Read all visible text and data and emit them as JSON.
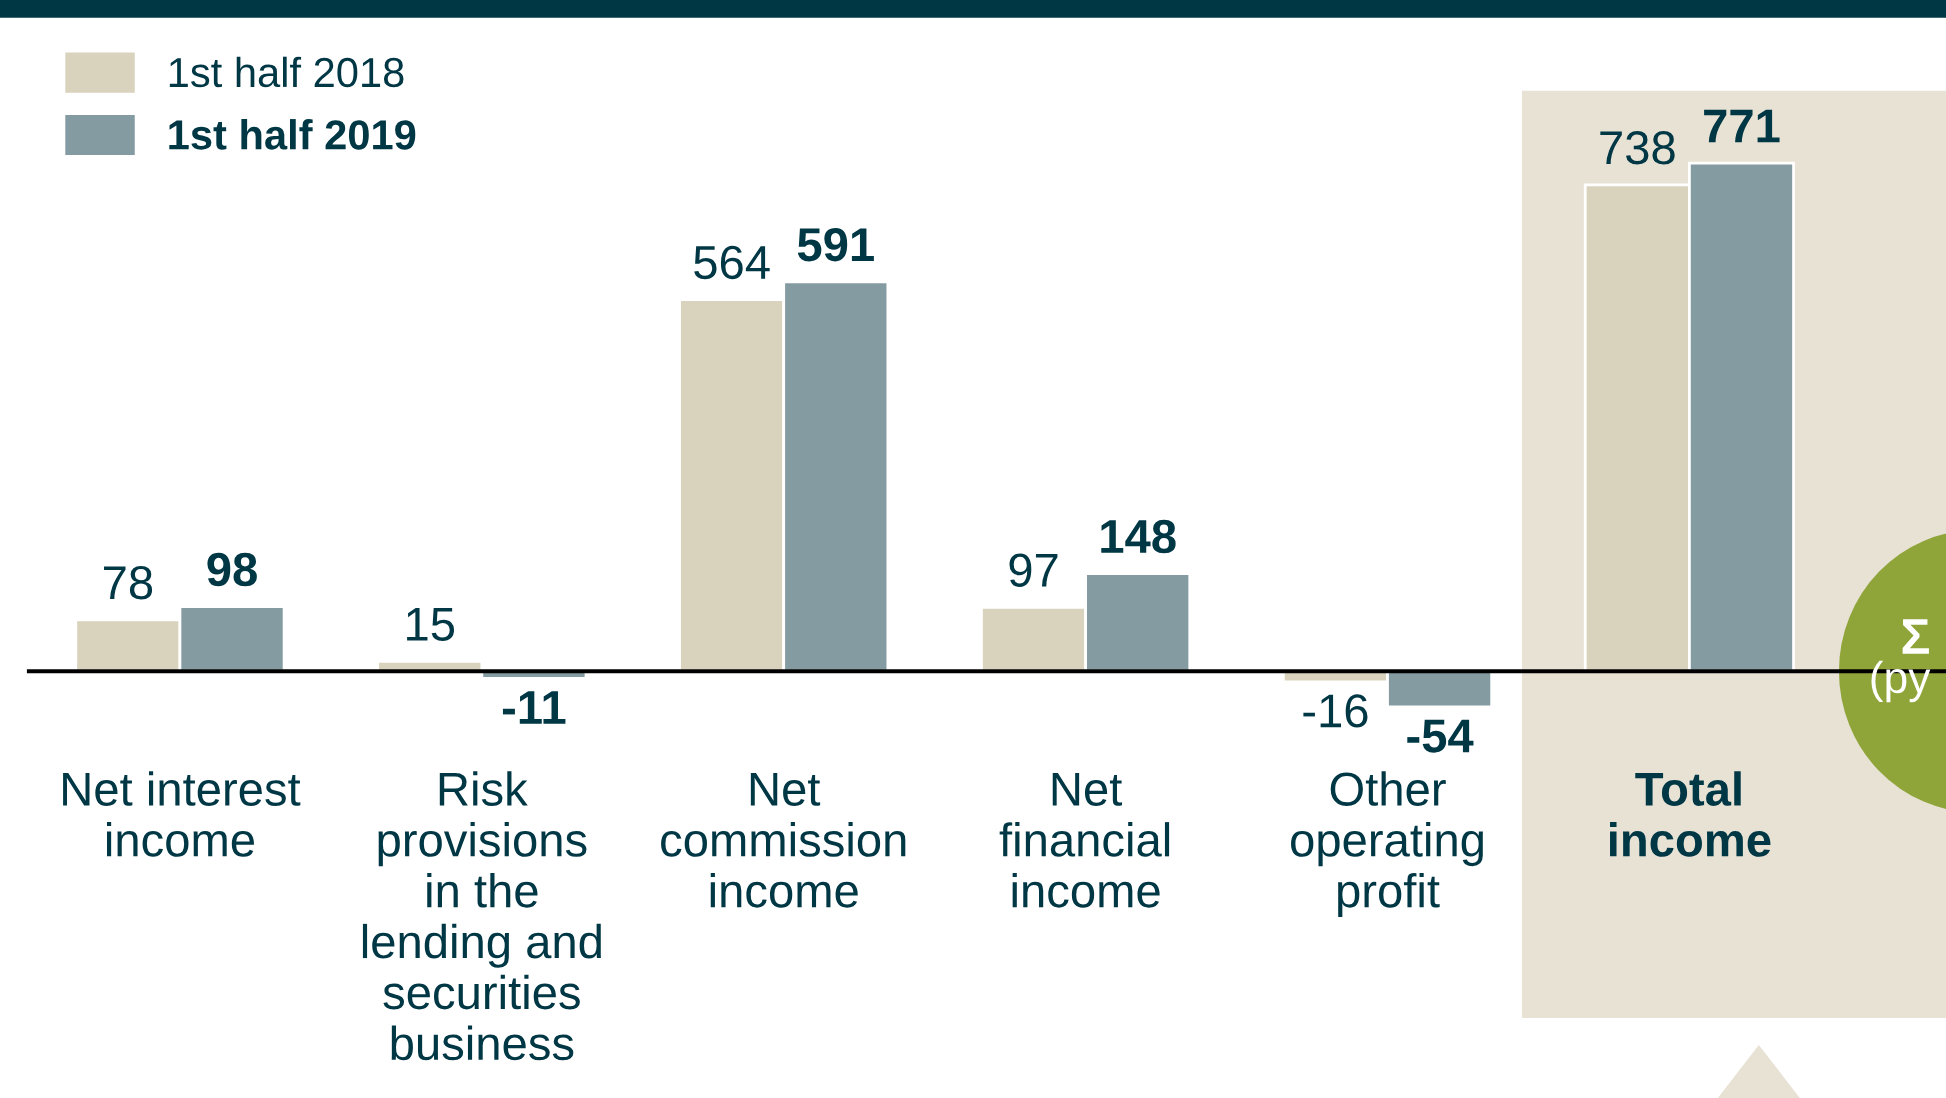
{
  "chart_data": {
    "type": "bar",
    "categories": [
      "Net interest\nincome",
      "Risk\nprovisions\nin the\nlending and\nsecurities\nbusiness",
      "Net\ncommission\nincome",
      "Net\nfinancial\nincome",
      "Other\noperating\nprofit",
      "Total\nincome"
    ],
    "series": [
      {
        "name": "1st half 2018",
        "color": "#d9d2bc",
        "values": [
          78,
          15,
          564,
          97,
          -16,
          738
        ]
      },
      {
        "name": "1st half 2019",
        "color": "#839ba1",
        "values": [
          98,
          -11,
          591,
          148,
          -54,
          771
        ]
      }
    ],
    "data_labels": true,
    "legend": "top left",
    "grid": false,
    "annotations": [
      "Σ",
      "(py"
    ]
  }
}
